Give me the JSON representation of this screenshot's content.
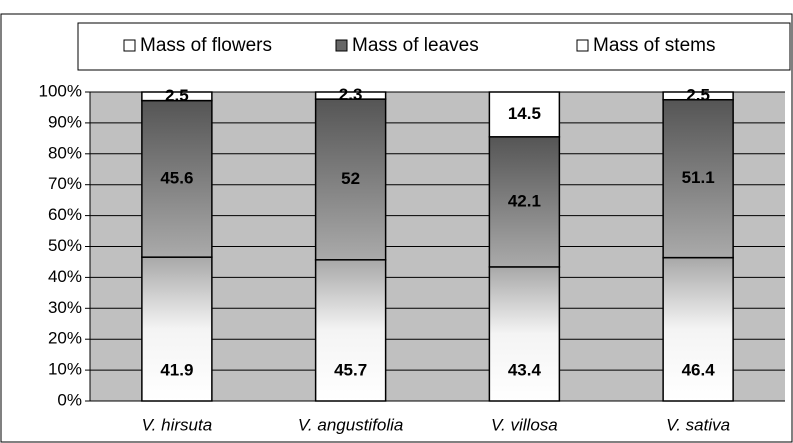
{
  "chart_data": {
    "type": "bar",
    "stacking": "percent",
    "categories": [
      "V. hirsuta",
      "V. angustifolia",
      "V. villosa",
      "V. sativa"
    ],
    "series": [
      {
        "name": "Mass of flowers",
        "color": "#ffffff",
        "values": [
          2.5,
          2.3,
          14.5,
          2.5
        ]
      },
      {
        "name": "Mass of leaves",
        "color": "#555555",
        "values": [
          45.6,
          52,
          42.1,
          51.1
        ]
      },
      {
        "name": "Mass of stems",
        "color": "#ffffff",
        "values": [
          41.9,
          45.7,
          43.4,
          46.4
        ]
      }
    ],
    "ylim": [
      0,
      100
    ],
    "yticks": [
      {
        "value": 0,
        "label": "0%"
      },
      {
        "value": 10,
        "label": "10%"
      },
      {
        "value": 20,
        "label": "20%"
      },
      {
        "value": 30,
        "label": "30%"
      },
      {
        "value": 40,
        "label": "40%"
      },
      {
        "value": 50,
        "label": "50%"
      },
      {
        "value": 60,
        "label": "60%"
      },
      {
        "value": 70,
        "label": "70%"
      },
      {
        "value": 80,
        "label": "80%"
      },
      {
        "value": 90,
        "label": "90%"
      },
      {
        "value": 100,
        "label": "100%"
      }
    ],
    "grid": true,
    "legend": "top",
    "plot_background": "#c0c0c0"
  }
}
